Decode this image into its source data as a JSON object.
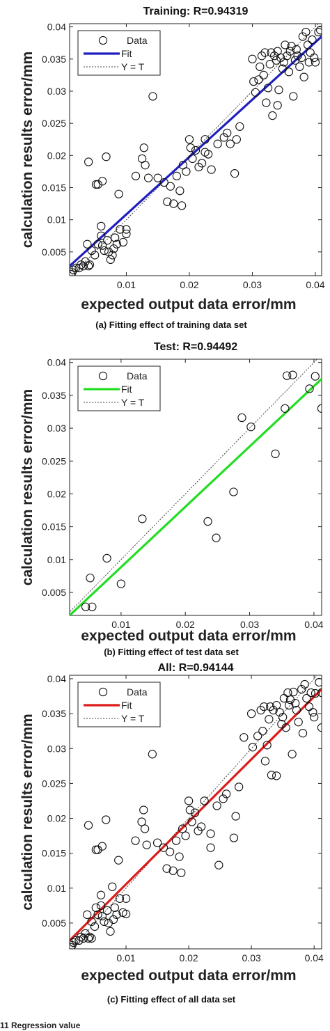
{
  "figure_caption": "11 Regression value",
  "chart_data": [
    {
      "type": "scatter",
      "title": "Training: R=0.94319",
      "caption": "(a) Fitting effect of training data set",
      "xlabel": "expected output data  error/mm",
      "ylabel": "calculation results  error/mm",
      "xlim": [
        0.001,
        0.041
      ],
      "ylim": [
        0.0013,
        0.0405
      ],
      "xticks": [
        "0.01",
        "0.02",
        "0.03",
        "0.04"
      ],
      "yticks": [
        "0.005",
        "0.01",
        "0.015",
        "0.02",
        "0.025",
        "0.03",
        "0.035",
        "0.04"
      ],
      "legend": [
        "Data",
        "Fit",
        "Y = T"
      ],
      "legend_position": "top-left",
      "fit_color": "#1f1fbf",
      "fit_line": {
        "x": [
          0.001,
          0.041
        ],
        "y": [
          0.0028,
          0.0385
        ]
      },
      "points": [
        [
          0.0012,
          0.0015
        ],
        [
          0.0014,
          0.0018
        ],
        [
          0.0016,
          0.0022
        ],
        [
          0.002,
          0.0025
        ],
        [
          0.0025,
          0.0025
        ],
        [
          0.0028,
          0.003
        ],
        [
          0.0032,
          0.0028
        ],
        [
          0.0035,
          0.0035
        ],
        [
          0.0038,
          0.0062
        ],
        [
          0.004,
          0.0028
        ],
        [
          0.0042,
          0.003
        ],
        [
          0.0045,
          0.0052
        ],
        [
          0.005,
          0.0045
        ],
        [
          0.0055,
          0.0062
        ],
        [
          0.006,
          0.0075
        ],
        [
          0.0062,
          0.006
        ],
        [
          0.0065,
          0.0052
        ],
        [
          0.007,
          0.0068
        ],
        [
          0.0072,
          0.005
        ],
        [
          0.0075,
          0.0038
        ],
        [
          0.0078,
          0.0045
        ],
        [
          0.008,
          0.0055
        ],
        [
          0.0082,
          0.0072
        ],
        [
          0.0085,
          0.0062
        ],
        [
          0.009,
          0.0085
        ],
        [
          0.0095,
          0.0065
        ],
        [
          0.01,
          0.0078
        ],
        [
          0.01,
          0.0085
        ],
        [
          0.006,
          0.009
        ],
        [
          0.0055,
          0.0155
        ],
        [
          0.0052,
          0.0155
        ],
        [
          0.0062,
          0.016
        ],
        [
          0.004,
          0.019
        ],
        [
          0.0068,
          0.0198
        ],
        [
          0.0088,
          0.014
        ],
        [
          0.0115,
          0.0168
        ],
        [
          0.0125,
          0.0195
        ],
        [
          0.0128,
          0.0212
        ],
        [
          0.013,
          0.0185
        ],
        [
          0.0135,
          0.0165
        ],
        [
          0.0142,
          0.0292
        ],
        [
          0.015,
          0.0165
        ],
        [
          0.016,
          0.0158
        ],
        [
          0.0165,
          0.0128
        ],
        [
          0.017,
          0.0152
        ],
        [
          0.0175,
          0.0125
        ],
        [
          0.018,
          0.0168
        ],
        [
          0.0185,
          0.0145
        ],
        [
          0.0188,
          0.0122
        ],
        [
          0.019,
          0.0185
        ],
        [
          0.0195,
          0.0175
        ],
        [
          0.02,
          0.0225
        ],
        [
          0.0202,
          0.0212
        ],
        [
          0.0205,
          0.0195
        ],
        [
          0.021,
          0.0208
        ],
        [
          0.0215,
          0.0182
        ],
        [
          0.022,
          0.0188
        ],
        [
          0.0225,
          0.0225
        ],
        [
          0.0225,
          0.0205
        ],
        [
          0.023,
          0.0202
        ],
        [
          0.0235,
          0.0178
        ],
        [
          0.0245,
          0.0218
        ],
        [
          0.0255,
          0.0228
        ],
        [
          0.026,
          0.0235
        ],
        [
          0.0265,
          0.0218
        ],
        [
          0.0272,
          0.0172
        ],
        [
          0.0275,
          0.0225
        ],
        [
          0.028,
          0.0245
        ],
        [
          0.03,
          0.035
        ],
        [
          0.0302,
          0.0315
        ],
        [
          0.0305,
          0.0298
        ],
        [
          0.031,
          0.0318
        ],
        [
          0.0312,
          0.0338
        ],
        [
          0.0315,
          0.0355
        ],
        [
          0.0318,
          0.0325
        ],
        [
          0.032,
          0.036
        ],
        [
          0.0322,
          0.0282
        ],
        [
          0.0325,
          0.0305
        ],
        [
          0.0328,
          0.0342
        ],
        [
          0.033,
          0.036
        ],
        [
          0.0332,
          0.0262
        ],
        [
          0.0335,
          0.0355
        ],
        [
          0.0338,
          0.0348
        ],
        [
          0.034,
          0.0362
        ],
        [
          0.034,
          0.0278
        ],
        [
          0.0342,
          0.0302
        ],
        [
          0.0345,
          0.0352
        ],
        [
          0.0348,
          0.0335
        ],
        [
          0.035,
          0.0345
        ],
        [
          0.0352,
          0.0372
        ],
        [
          0.0355,
          0.0355
        ],
        [
          0.0358,
          0.033
        ],
        [
          0.036,
          0.0362
        ],
        [
          0.0362,
          0.037
        ],
        [
          0.0365,
          0.0292
        ],
        [
          0.0368,
          0.0348
        ],
        [
          0.037,
          0.0365
        ],
        [
          0.0372,
          0.0355
        ],
        [
          0.0375,
          0.0338
        ],
        [
          0.0378,
          0.0352
        ],
        [
          0.038,
          0.0385
        ],
        [
          0.0382,
          0.0322
        ],
        [
          0.0385,
          0.0392
        ],
        [
          0.0388,
          0.0372
        ],
        [
          0.039,
          0.0345
        ],
        [
          0.0392,
          0.036
        ],
        [
          0.0395,
          0.038
        ],
        [
          0.0398,
          0.0352
        ],
        [
          0.04,
          0.0345
        ],
        [
          0.0405,
          0.0392
        ],
        [
          0.0408,
          0.0395
        ]
      ]
    },
    {
      "type": "scatter",
      "title": "Test: R=0.94492",
      "caption": "(b) Fitting effect of test data set",
      "xlabel": "expected output data  error/mm",
      "ylabel": "calculation results  error/mm",
      "xlim": [
        0.002,
        0.0412
      ],
      "ylim": [
        0.0015,
        0.0405
      ],
      "xticks": [
        "0.01",
        "0.02",
        "0.03",
        "0.04"
      ],
      "yticks": [
        "0.005",
        "0.01",
        "0.015",
        "0.02",
        "0.025",
        "0.03",
        "0.035",
        "0.04"
      ],
      "legend": [
        "Data",
        "Fit",
        "Y = T"
      ],
      "legend_position": "top-left",
      "fit_color": "#22dd22",
      "fit_line": {
        "x": [
          0.002,
          0.0412
        ],
        "y": [
          0.0015,
          0.0375
        ]
      },
      "points": [
        [
          0.0045,
          0.0028
        ],
        [
          0.0055,
          0.0028
        ],
        [
          0.0052,
          0.0072
        ],
        [
          0.0078,
          0.0102
        ],
        [
          0.01,
          0.0063
        ],
        [
          0.0133,
          0.0162
        ],
        [
          0.0235,
          0.0158
        ],
        [
          0.0248,
          0.0133
        ],
        [
          0.0275,
          0.0203
        ],
        [
          0.0288,
          0.0316
        ],
        [
          0.0302,
          0.0302
        ],
        [
          0.034,
          0.0261
        ],
        [
          0.0355,
          0.033
        ],
        [
          0.0358,
          0.038
        ],
        [
          0.0367,
          0.0381
        ],
        [
          0.0393,
          0.036
        ],
        [
          0.0402,
          0.0379
        ],
        [
          0.0412,
          0.033
        ]
      ]
    },
    {
      "type": "scatter",
      "title": "All: R=0.94144",
      "caption": "(c) Fitting effect of all data set",
      "xlabel": "expected output data  error/mm",
      "ylabel": "calculation results  error/mm",
      "xlim": [
        0.001,
        0.0412
      ],
      "ylim": [
        0.0013,
        0.0405
      ],
      "xticks": [
        "0.01",
        "0.02",
        "0.03",
        "0.04"
      ],
      "yticks": [
        "0.005",
        "0.01",
        "0.015",
        "0.02",
        "0.025",
        "0.03",
        "0.035",
        "0.04"
      ],
      "legend": [
        "Data",
        "Fit",
        "Y = T"
      ],
      "legend_position": "top-left",
      "fit_color": "#dd1b1b",
      "fit_line": {
        "x": [
          0.001,
          0.0412
        ],
        "y": [
          0.0025,
          0.0385
        ]
      },
      "points": [
        [
          0.0012,
          0.0015
        ],
        [
          0.0014,
          0.0018
        ],
        [
          0.0016,
          0.0022
        ],
        [
          0.002,
          0.0025
        ],
        [
          0.0025,
          0.0025
        ],
        [
          0.0028,
          0.003
        ],
        [
          0.0032,
          0.0028
        ],
        [
          0.0035,
          0.0035
        ],
        [
          0.0038,
          0.0062
        ],
        [
          0.004,
          0.0028
        ],
        [
          0.0042,
          0.003
        ],
        [
          0.0045,
          0.0052
        ],
        [
          0.0045,
          0.0028
        ],
        [
          0.005,
          0.0045
        ],
        [
          0.0052,
          0.0072
        ],
        [
          0.0055,
          0.0062
        ],
        [
          0.006,
          0.0075
        ],
        [
          0.0062,
          0.006
        ],
        [
          0.0065,
          0.0052
        ],
        [
          0.007,
          0.0068
        ],
        [
          0.0072,
          0.005
        ],
        [
          0.0075,
          0.0038
        ],
        [
          0.0078,
          0.0102
        ],
        [
          0.008,
          0.0055
        ],
        [
          0.0082,
          0.0072
        ],
        [
          0.0085,
          0.0062
        ],
        [
          0.009,
          0.0085
        ],
        [
          0.0095,
          0.0065
        ],
        [
          0.01,
          0.0063
        ],
        [
          0.01,
          0.0085
        ],
        [
          0.006,
          0.009
        ],
        [
          0.0055,
          0.0155
        ],
        [
          0.0052,
          0.0155
        ],
        [
          0.0062,
          0.016
        ],
        [
          0.004,
          0.019
        ],
        [
          0.0068,
          0.0198
        ],
        [
          0.0088,
          0.014
        ],
        [
          0.0115,
          0.0168
        ],
        [
          0.0125,
          0.0195
        ],
        [
          0.0128,
          0.0212
        ],
        [
          0.013,
          0.0185
        ],
        [
          0.0133,
          0.0162
        ],
        [
          0.0142,
          0.0292
        ],
        [
          0.015,
          0.0165
        ],
        [
          0.016,
          0.0158
        ],
        [
          0.0165,
          0.0128
        ],
        [
          0.017,
          0.0152
        ],
        [
          0.0175,
          0.0125
        ],
        [
          0.018,
          0.0168
        ],
        [
          0.0185,
          0.0145
        ],
        [
          0.0188,
          0.0122
        ],
        [
          0.019,
          0.0185
        ],
        [
          0.0195,
          0.0175
        ],
        [
          0.02,
          0.0225
        ],
        [
          0.0202,
          0.0212
        ],
        [
          0.0205,
          0.0195
        ],
        [
          0.021,
          0.0208
        ],
        [
          0.0215,
          0.0182
        ],
        [
          0.022,
          0.0188
        ],
        [
          0.0225,
          0.0225
        ],
        [
          0.0235,
          0.0158
        ],
        [
          0.0235,
          0.0178
        ],
        [
          0.0245,
          0.0218
        ],
        [
          0.0248,
          0.0133
        ],
        [
          0.0255,
          0.0228
        ],
        [
          0.026,
          0.0235
        ],
        [
          0.0272,
          0.0172
        ],
        [
          0.0275,
          0.0203
        ],
        [
          0.028,
          0.0245
        ],
        [
          0.0288,
          0.0316
        ],
        [
          0.03,
          0.035
        ],
        [
          0.0302,
          0.0302
        ],
        [
          0.031,
          0.0318
        ],
        [
          0.0315,
          0.0355
        ],
        [
          0.0318,
          0.0325
        ],
        [
          0.032,
          0.036
        ],
        [
          0.0322,
          0.0282
        ],
        [
          0.0325,
          0.0305
        ],
        [
          0.0328,
          0.0342
        ],
        [
          0.033,
          0.036
        ],
        [
          0.0332,
          0.0262
        ],
        [
          0.0335,
          0.0355
        ],
        [
          0.034,
          0.0261
        ],
        [
          0.034,
          0.0362
        ],
        [
          0.0345,
          0.0352
        ],
        [
          0.0348,
          0.0335
        ],
        [
          0.035,
          0.0345
        ],
        [
          0.0352,
          0.0372
        ],
        [
          0.0355,
          0.033
        ],
        [
          0.0358,
          0.038
        ],
        [
          0.036,
          0.0362
        ],
        [
          0.0362,
          0.037
        ],
        [
          0.0365,
          0.0292
        ],
        [
          0.0367,
          0.0381
        ],
        [
          0.037,
          0.0365
        ],
        [
          0.0372,
          0.0355
        ],
        [
          0.0375,
          0.0338
        ],
        [
          0.038,
          0.0385
        ],
        [
          0.0382,
          0.0322
        ],
        [
          0.0385,
          0.0392
        ],
        [
          0.0388,
          0.0372
        ],
        [
          0.0392,
          0.036
        ],
        [
          0.0395,
          0.038
        ],
        [
          0.0398,
          0.0352
        ],
        [
          0.04,
          0.0345
        ],
        [
          0.0402,
          0.0379
        ],
        [
          0.0408,
          0.0395
        ],
        [
          0.0412,
          0.033
        ],
        [
          0.0412,
          0.038
        ]
      ]
    }
  ]
}
